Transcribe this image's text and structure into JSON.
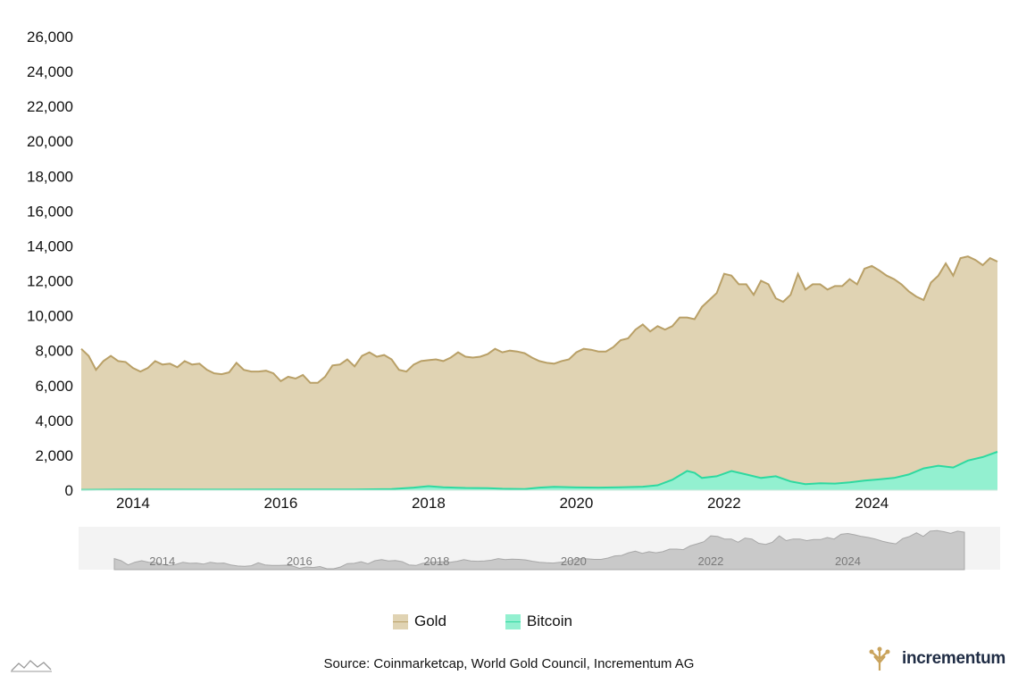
{
  "chart_data": {
    "type": "area",
    "source": "Source: Coinmarketcap, World Gold Council, Incrementum AG",
    "brand": "incrementum",
    "ylim": [
      0,
      26000
    ],
    "y_ticks": [
      "0",
      "2,000",
      "4,000",
      "6,000",
      "8,000",
      "10,000",
      "12,000",
      "14,000",
      "16,000",
      "18,000",
      "20,000",
      "22,000",
      "24,000",
      "26,000"
    ],
    "y_tick_values": [
      0,
      2000,
      4000,
      6000,
      8000,
      10000,
      12000,
      14000,
      16000,
      18000,
      20000,
      22000,
      24000,
      26000
    ],
    "x_range": [
      2013.3,
      2025.7
    ],
    "x_ticks": [
      "2014",
      "2016",
      "2018",
      "2020",
      "2022",
      "2024"
    ],
    "x_tick_values": [
      2014,
      2016,
      2018,
      2020,
      2022,
      2024
    ],
    "legend": [
      {
        "name": "Gold",
        "color": "#e0d3b3",
        "line": "#b9a067"
      },
      {
        "name": "Bitcoin",
        "color": "#93f0d0",
        "line": "#2ed9a0"
      }
    ],
    "series": [
      {
        "name": "Gold",
        "fill": "#e0d3b3",
        "stroke": "#b9a067",
        "points": [
          [
            2013.3,
            8100
          ],
          [
            2013.4,
            7700
          ],
          [
            2013.5,
            6900
          ],
          [
            2013.6,
            7400
          ],
          [
            2013.7,
            7700
          ],
          [
            2013.8,
            7400
          ],
          [
            2013.9,
            7350
          ],
          [
            2014.0,
            7000
          ],
          [
            2014.1,
            6800
          ],
          [
            2014.2,
            7000
          ],
          [
            2014.3,
            7400
          ],
          [
            2014.4,
            7200
          ],
          [
            2014.5,
            7250
          ],
          [
            2014.6,
            7050
          ],
          [
            2014.7,
            7400
          ],
          [
            2014.8,
            7200
          ],
          [
            2014.9,
            7250
          ],
          [
            2015.0,
            6900
          ],
          [
            2015.1,
            6700
          ],
          [
            2015.2,
            6650
          ],
          [
            2015.3,
            6750
          ],
          [
            2015.4,
            7300
          ],
          [
            2015.5,
            6900
          ],
          [
            2015.6,
            6800
          ],
          [
            2015.7,
            6800
          ],
          [
            2015.8,
            6850
          ],
          [
            2015.9,
            6700
          ],
          [
            2016.0,
            6250
          ],
          [
            2016.1,
            6500
          ],
          [
            2016.2,
            6400
          ],
          [
            2016.3,
            6600
          ],
          [
            2016.4,
            6150
          ],
          [
            2016.5,
            6150
          ],
          [
            2016.6,
            6500
          ],
          [
            2016.7,
            7150
          ],
          [
            2016.8,
            7200
          ],
          [
            2016.9,
            7500
          ],
          [
            2017.0,
            7100
          ],
          [
            2017.1,
            7700
          ],
          [
            2017.2,
            7900
          ],
          [
            2017.3,
            7650
          ],
          [
            2017.4,
            7750
          ],
          [
            2017.5,
            7500
          ],
          [
            2017.6,
            6900
          ],
          [
            2017.7,
            6800
          ],
          [
            2017.8,
            7200
          ],
          [
            2017.9,
            7400
          ],
          [
            2018.0,
            7450
          ],
          [
            2018.1,
            7500
          ],
          [
            2018.2,
            7400
          ],
          [
            2018.3,
            7600
          ],
          [
            2018.4,
            7900
          ],
          [
            2018.5,
            7650
          ],
          [
            2018.6,
            7600
          ],
          [
            2018.7,
            7650
          ],
          [
            2018.8,
            7800
          ],
          [
            2018.9,
            8100
          ],
          [
            2019.0,
            7900
          ],
          [
            2019.1,
            8000
          ],
          [
            2019.2,
            7950
          ],
          [
            2019.3,
            7850
          ],
          [
            2019.4,
            7600
          ],
          [
            2019.5,
            7400
          ],
          [
            2019.6,
            7300
          ],
          [
            2019.7,
            7250
          ],
          [
            2019.8,
            7400
          ],
          [
            2019.9,
            7500
          ],
          [
            2020.0,
            7900
          ],
          [
            2020.1,
            8100
          ],
          [
            2020.2,
            8050
          ],
          [
            2020.3,
            7950
          ],
          [
            2020.4,
            7950
          ],
          [
            2020.5,
            8200
          ],
          [
            2020.6,
            8600
          ],
          [
            2020.7,
            8700
          ],
          [
            2020.8,
            9200
          ],
          [
            2020.9,
            9500
          ],
          [
            2021.0,
            9100
          ],
          [
            2021.1,
            9400
          ],
          [
            2021.2,
            9200
          ],
          [
            2021.3,
            9400
          ],
          [
            2021.4,
            9900
          ],
          [
            2021.5,
            9900
          ],
          [
            2021.6,
            9800
          ],
          [
            2021.7,
            10500
          ],
          [
            2021.8,
            10900
          ],
          [
            2021.9,
            11300
          ],
          [
            2022.0,
            12400
          ],
          [
            2022.1,
            12300
          ],
          [
            2022.2,
            11800
          ],
          [
            2022.3,
            11800
          ],
          [
            2022.4,
            11200
          ],
          [
            2022.5,
            12000
          ],
          [
            2022.6,
            11800
          ],
          [
            2022.7,
            11000
          ],
          [
            2022.8,
            10800
          ],
          [
            2022.9,
            11200
          ],
          [
            2023.0,
            12400
          ],
          [
            2023.1,
            11500
          ],
          [
            2023.2,
            11800
          ],
          [
            2023.3,
            11800
          ],
          [
            2023.4,
            11500
          ],
          [
            2023.5,
            11700
          ],
          [
            2023.6,
            11700
          ],
          [
            2023.7,
            12100
          ],
          [
            2023.8,
            11800
          ],
          [
            2023.9,
            12700
          ],
          [
            2024.0,
            12850
          ],
          [
            2024.1,
            12600
          ],
          [
            2024.2,
            12300
          ],
          [
            2024.3,
            12100
          ],
          [
            2024.4,
            11800
          ],
          [
            2024.5,
            11400
          ],
          [
            2024.6,
            11100
          ],
          [
            2024.7,
            10900
          ],
          [
            2024.8,
            11900
          ],
          [
            2024.9,
            12300
          ],
          [
            2025.0,
            13000
          ],
          [
            2025.1,
            12300
          ],
          [
            2025.2,
            13300
          ],
          [
            2025.3,
            13400
          ],
          [
            2025.4,
            13200
          ],
          [
            2025.5,
            12900
          ],
          [
            2025.6,
            13300
          ],
          [
            2025.7,
            13100
          ]
        ]
      },
      {
        "name": "Bitcoin",
        "fill": "#93f0d0",
        "stroke": "#2ed9a0",
        "points": [
          [
            2013.3,
            20
          ],
          [
            2014.0,
            40
          ],
          [
            2015.0,
            30
          ],
          [
            2016.0,
            40
          ],
          [
            2017.0,
            40
          ],
          [
            2017.5,
            60
          ],
          [
            2017.8,
            150
          ],
          [
            2018.0,
            230
          ],
          [
            2018.2,
            170
          ],
          [
            2018.5,
            130
          ],
          [
            2018.8,
            120
          ],
          [
            2019.0,
            80
          ],
          [
            2019.3,
            60
          ],
          [
            2019.5,
            150
          ],
          [
            2019.7,
            190
          ],
          [
            2020.0,
            160
          ],
          [
            2020.3,
            150
          ],
          [
            2020.6,
            170
          ],
          [
            2020.9,
            200
          ],
          [
            2021.1,
            280
          ],
          [
            2021.3,
            600
          ],
          [
            2021.5,
            1100
          ],
          [
            2021.6,
            1000
          ],
          [
            2021.7,
            700
          ],
          [
            2021.9,
            800
          ],
          [
            2022.1,
            1100
          ],
          [
            2022.3,
            900
          ],
          [
            2022.5,
            700
          ],
          [
            2022.7,
            800
          ],
          [
            2022.9,
            500
          ],
          [
            2023.1,
            350
          ],
          [
            2023.3,
            400
          ],
          [
            2023.5,
            380
          ],
          [
            2023.7,
            450
          ],
          [
            2023.9,
            550
          ],
          [
            2024.1,
            620
          ],
          [
            2024.3,
            700
          ],
          [
            2024.5,
            900
          ],
          [
            2024.7,
            1250
          ],
          [
            2024.9,
            1400
          ],
          [
            2025.1,
            1300
          ],
          [
            2025.3,
            1700
          ],
          [
            2025.5,
            1900
          ],
          [
            2025.7,
            2200
          ]
        ]
      }
    ],
    "navigator_ticks": [
      "2014",
      "2016",
      "2018",
      "2020",
      "2022",
      "2024"
    ]
  }
}
